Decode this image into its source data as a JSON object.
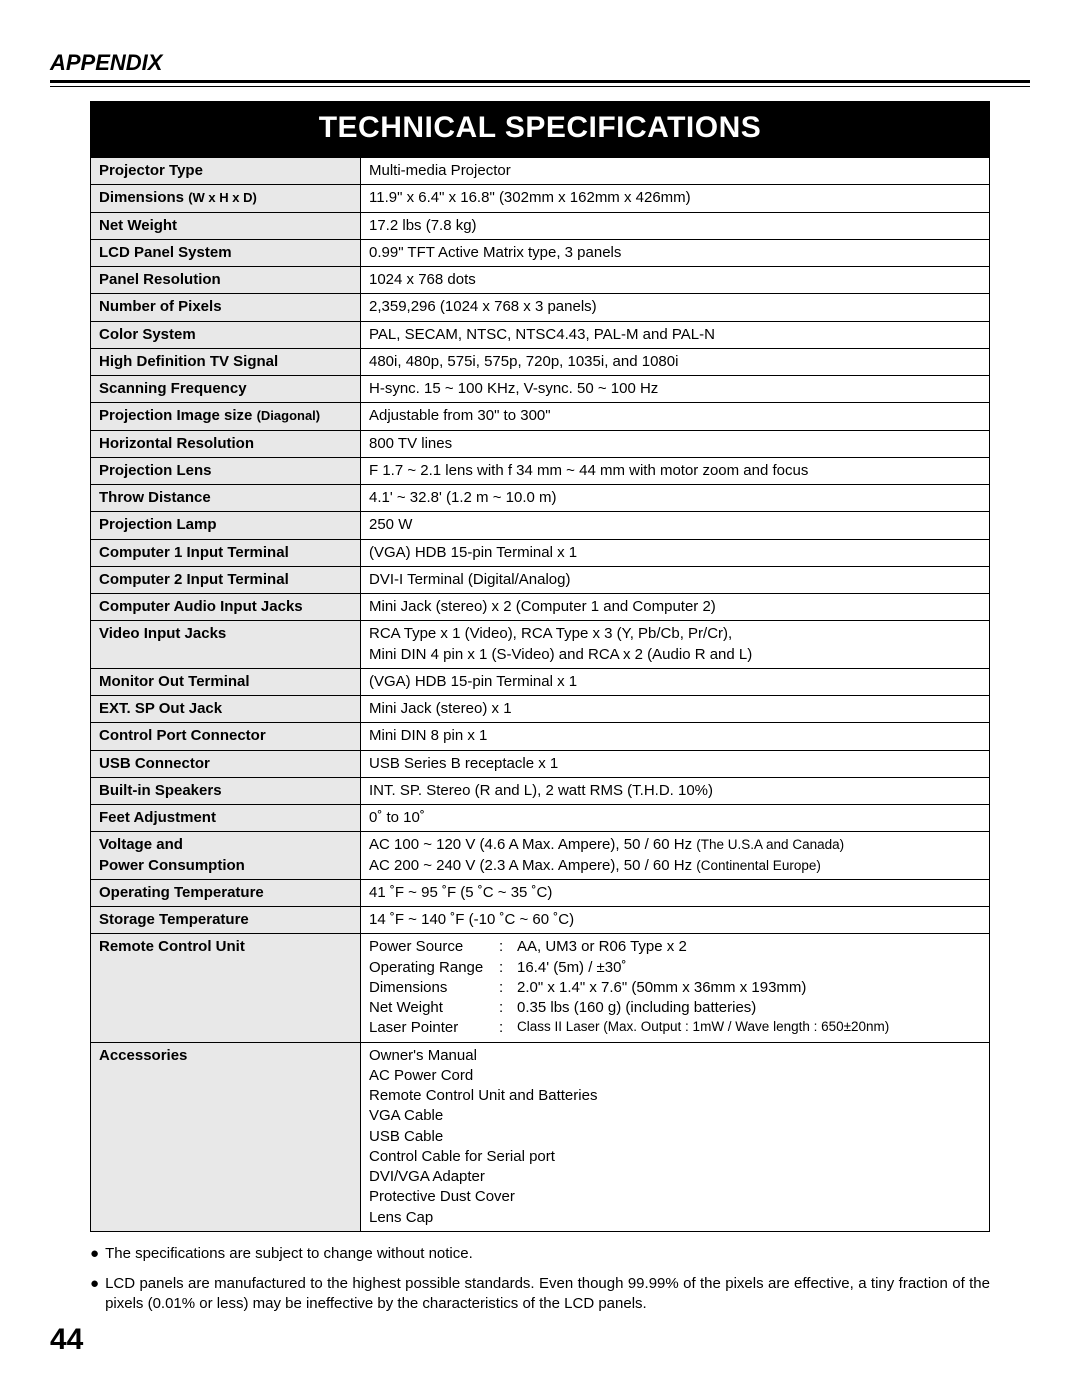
{
  "header": {
    "appendix": "APPENDIX"
  },
  "title": "TECHNICAL SPECIFICATIONS",
  "rows": {
    "projector_type": {
      "label": "Projector Type",
      "value": "Multi-media Projector"
    },
    "dimensions": {
      "label": "Dimensions",
      "label_small": "(W x H x D)",
      "value": "11.9\" x 6.4\" x 16.8\" (302mm x 162mm x 426mm)"
    },
    "net_weight": {
      "label": "Net Weight",
      "value": "17.2 lbs (7.8 kg)"
    },
    "lcd_panel": {
      "label": "LCD Panel System",
      "value": "0.99\" TFT Active Matrix type, 3 panels"
    },
    "panel_res": {
      "label": "Panel Resolution",
      "value": "1024 x 768 dots"
    },
    "num_pixels": {
      "label": "Number of Pixels",
      "value": "2,359,296 (1024 x 768 x 3 panels)"
    },
    "color_system": {
      "label": "Color System",
      "value": "PAL, SECAM, NTSC, NTSC4.43, PAL-M and PAL-N"
    },
    "hdtv": {
      "label": "High Definition TV Signal",
      "value": "480i, 480p, 575i, 575p, 720p, 1035i, and 1080i"
    },
    "scan_freq": {
      "label": "Scanning Frequency",
      "value": "H-sync. 15 ~ 100 KHz, V-sync. 50 ~ 100 Hz"
    },
    "proj_img": {
      "label": "Projection Image size",
      "label_small": "(Diagonal)",
      "value": "Adjustable from 30\" to 300\""
    },
    "horiz_res": {
      "label": "Horizontal Resolution",
      "value": "800 TV lines"
    },
    "proj_lens": {
      "label": "Projection Lens",
      "value": "F 1.7 ~ 2.1 lens with f 34 mm ~ 44 mm with motor zoom and focus"
    },
    "throw": {
      "label": "Throw Distance",
      "value": "4.1' ~ 32.8' (1.2 m ~ 10.0 m)"
    },
    "lamp": {
      "label": "Projection Lamp",
      "value": "250 W"
    },
    "comp1": {
      "label": "Computer 1 Input Terminal",
      "value": "(VGA) HDB 15-pin Terminal x 1"
    },
    "comp2": {
      "label": "Computer 2 Input Terminal",
      "value": "DVI-I Terminal (Digital/Analog)"
    },
    "comp_audio": {
      "label": "Computer Audio Input Jacks",
      "value": "Mini Jack (stereo)  x 2 (Computer 1 and Computer 2)"
    },
    "video_jacks": {
      "label": "Video Input Jacks",
      "v1": "RCA Type x 1 (Video), RCA Type  x 3 (Y, Pb/Cb, Pr/Cr),",
      "v2": "Mini DIN 4 pin x 1 (S-Video) and RCA x 2 (Audio R and L)"
    },
    "monitor_out": {
      "label": "Monitor Out Terminal",
      "value": "(VGA) HDB 15-pin Terminal x 1"
    },
    "ext_sp": {
      "label": "EXT. SP Out Jack",
      "value": "Mini Jack (stereo) x 1"
    },
    "control_port": {
      "label": "Control Port Connector",
      "value": "Mini DIN 8 pin x 1"
    },
    "usb": {
      "label": "USB Connector",
      "value": "USB Series B receptacle x 1"
    },
    "speakers": {
      "label": "Built-in Speakers",
      "value": "INT. SP. Stereo (R and L), 2 watt RMS (T.H.D. 10%)"
    },
    "feet": {
      "label": "Feet Adjustment",
      "value": "0˚ to 10˚"
    },
    "voltage": {
      "label1": "Voltage and",
      "label2": "Power Consumption",
      "v1a": "AC 100 ~ 120 V (4.6 A  Max. Ampere), 50 / 60 Hz  ",
      "v1b": "(The U.S.A and Canada)",
      "v2a": "AC 200 ~ 240 V (2.3 A  Max. Ampere), 50 / 60 Hz  ",
      "v2b": "(Continental Europe)"
    },
    "op_temp": {
      "label": "Operating Temperature",
      "value": "41 ˚F ~ 95 ˚F (5 ˚C ~ 35 ˚C)"
    },
    "storage_temp": {
      "label": "Storage Temperature",
      "value": "14 ˚F ~ 140 ˚F (-10 ˚C ~ 60 ˚C)"
    },
    "remote": {
      "label": "Remote Control Unit",
      "r1k": "Power Source",
      "r1v": "AA, UM3 or R06 Type x 2",
      "r2k": "Operating Range",
      "r2v": "16.4' (5m) / ±30˚",
      "r3k": "Dimensions",
      "r3v": "2.0\" x 1.4\" x 7.6\" (50mm x 36mm x 193mm)",
      "r4k": "Net Weight",
      "r4v": "0.35 lbs (160 g) (including batteries)",
      "r5k": "Laser Pointer",
      "r5v": "Class II Laser  (Max. Output : 1mW / Wave length : 650±20nm)"
    },
    "accessories": {
      "label": "Accessories",
      "a1": "Owner's Manual",
      "a2": "AC Power Cord",
      "a3": "Remote Control Unit and Batteries",
      "a4": "VGA Cable",
      "a5": "USB Cable",
      "a6": "Control Cable for Serial port",
      "a7": "DVI/VGA Adapter",
      "a8": "Protective Dust Cover",
      "a9": "Lens Cap"
    }
  },
  "notes": {
    "n1": "The specifications are subject to change without notice.",
    "n2": "LCD panels are manufactured to the highest possible standards.  Even though 99.99% of the pixels are effective,  a tiny fraction of the pixels (0.01% or less) may be ineffective by the characteristics of the LCD panels."
  },
  "page_number": "44",
  "colors": {
    "label_bg": "#e8e8e8",
    "title_bg": "#000000",
    "title_fg": "#ffffff",
    "border": "#000000"
  }
}
